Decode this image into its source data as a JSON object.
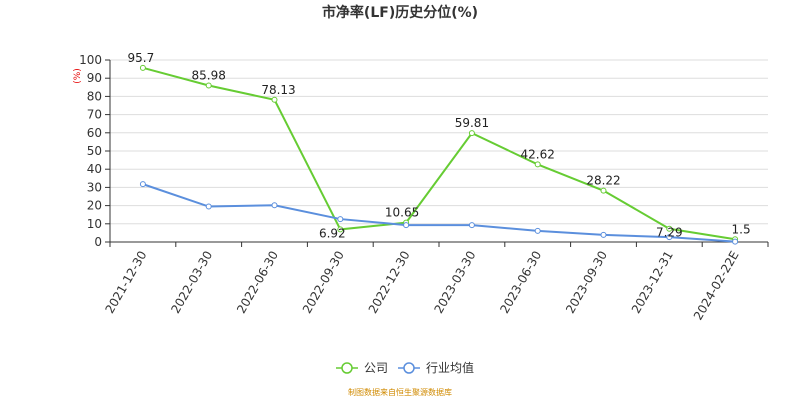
{
  "chart_data": {
    "type": "line",
    "title": "市净率(LF)历史分位(%)",
    "ylabel": "(%)",
    "ylim": [
      0,
      100
    ],
    "yticks": [
      0,
      10,
      20,
      30,
      40,
      50,
      60,
      70,
      80,
      90,
      100
    ],
    "categories": [
      "2021-12-30",
      "2022-03-30",
      "2022-06-30",
      "2022-09-30",
      "2022-12-30",
      "2023-03-30",
      "2023-06-30",
      "2023-09-30",
      "2023-12-31",
      "2024-02-22E"
    ],
    "series": [
      {
        "name": "公司",
        "color": "#66cc33",
        "values": [
          95.7,
          85.98,
          78.13,
          6.92,
          10.65,
          59.81,
          42.62,
          28.22,
          7.29,
          1.5
        ],
        "labels": [
          "95.7",
          "85.98",
          "78.13",
          "6.92",
          "10.65",
          "59.81",
          "42.62",
          "28.22",
          "7.29",
          "1.5"
        ]
      },
      {
        "name": "行业均值",
        "color": "#5b8fdd",
        "values": [
          31.8,
          19.5,
          20.2,
          12.6,
          9.3,
          9.3,
          6.1,
          3.9,
          2.7,
          0.2
        ]
      }
    ],
    "grid": true,
    "legend_position": "bottom-center",
    "source": "制图数据来自恒生聚源数据库"
  }
}
